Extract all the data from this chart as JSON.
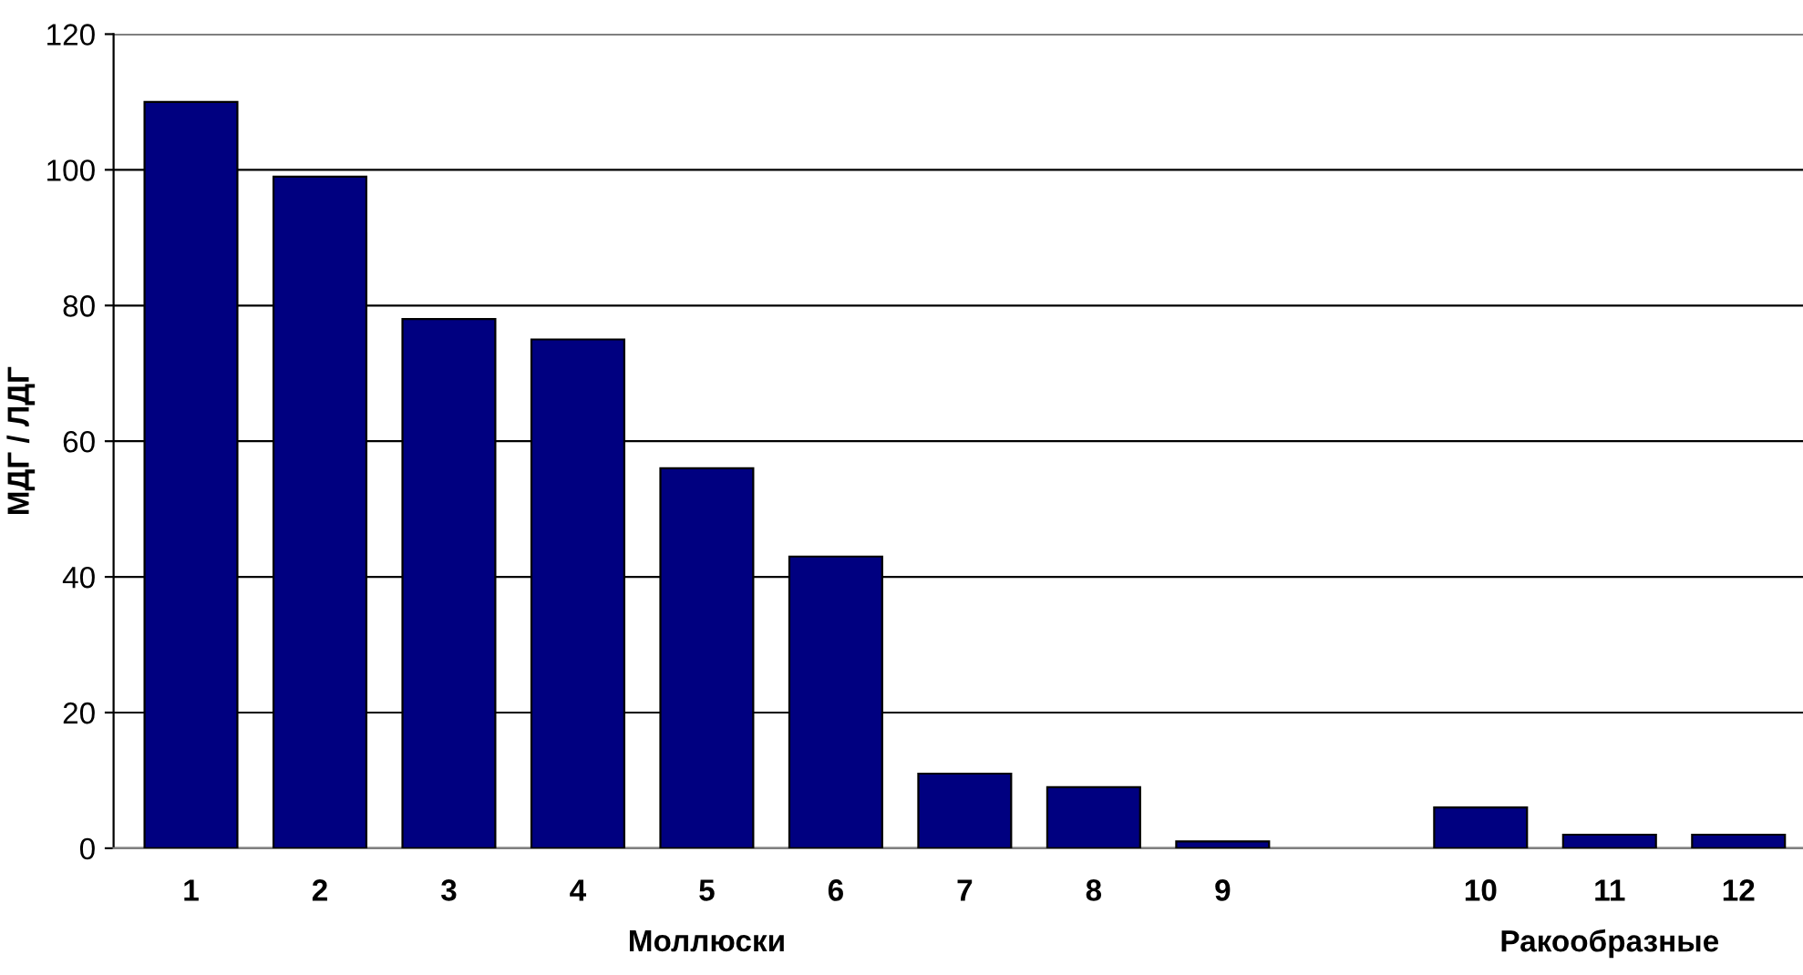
{
  "chart_data": {
    "type": "bar",
    "ylabel": "МДГ / ЛДГ",
    "categories": [
      "1",
      "2",
      "3",
      "4",
      "5",
      "6",
      "7",
      "8",
      "9",
      null,
      "10",
      "11",
      "12"
    ],
    "values": [
      110,
      99,
      78,
      75,
      56,
      43,
      11,
      9,
      1,
      null,
      6,
      2,
      2
    ],
    "color": "#000080",
    "ylim": [
      0,
      120
    ],
    "yticks": [
      0,
      20,
      40,
      60,
      80,
      100,
      120
    ],
    "grid": "y",
    "annotations": [
      "Моллюски",
      "Ракообразные"
    ]
  }
}
